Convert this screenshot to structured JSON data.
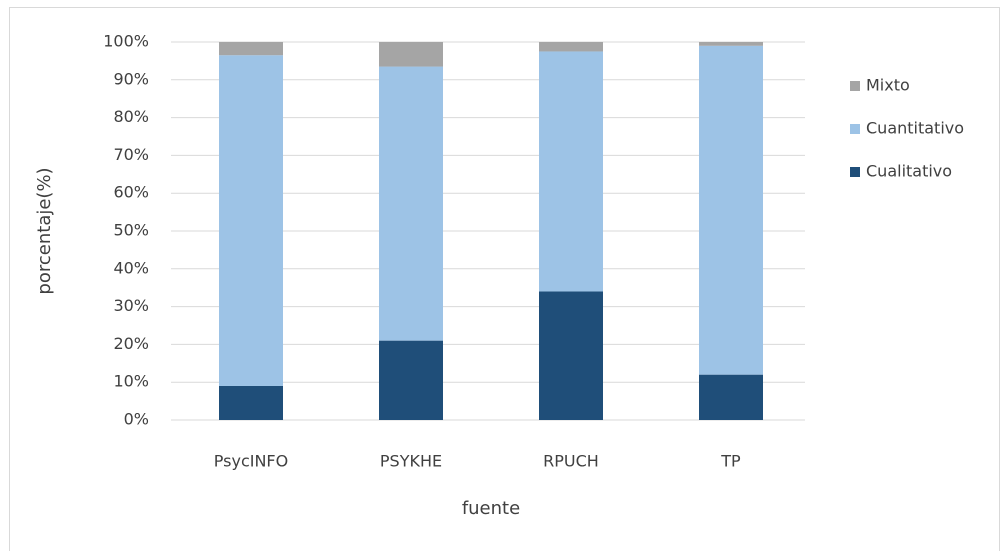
{
  "chart_data": {
    "type": "stacked_bar",
    "categories": [
      "PsycINFO",
      "PSYKHE",
      "RPUCH",
      "TP"
    ],
    "series": [
      {
        "name": "Cualitativo",
        "color": "#1f4e79",
        "values": [
          9,
          21,
          34,
          12
        ]
      },
      {
        "name": "Cuantitativo",
        "color": "#9dc3e6",
        "values": [
          87.5,
          72.5,
          63.5,
          87
        ]
      },
      {
        "name": "Mixto",
        "color": "#a5a5a5",
        "values": [
          3.5,
          6.5,
          2.5,
          1
        ]
      }
    ],
    "ylim": [
      0,
      100
    ],
    "yticks": [
      {
        "value": 0,
        "label": "0%"
      },
      {
        "value": 10,
        "label": "10%"
      },
      {
        "value": 20,
        "label": "20%"
      },
      {
        "value": 30,
        "label": "30%"
      },
      {
        "value": 40,
        "label": "40%"
      },
      {
        "value": 50,
        "label": "50%"
      },
      {
        "value": 60,
        "label": "60%"
      },
      {
        "value": 70,
        "label": "70%"
      },
      {
        "value": 80,
        "label": "80%"
      },
      {
        "value": 90,
        "label": "90%"
      },
      {
        "value": 100,
        "label": "100%"
      }
    ],
    "ylabel": "porcentaje(%)",
    "xlabel": "fuente",
    "grid": true,
    "legend": "right"
  }
}
